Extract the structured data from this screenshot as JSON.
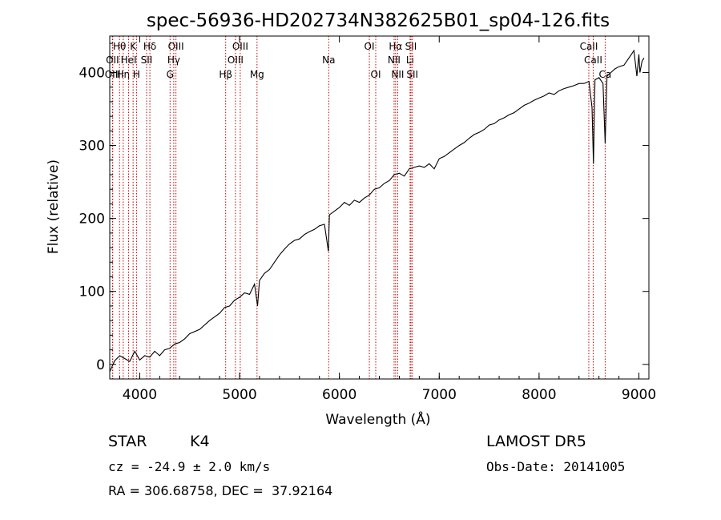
{
  "chart_data": {
    "type": "line",
    "title": "spec-56936-HD202734N382625B01_sp04-126.fits",
    "xlabel": "Wavelength (Å)",
    "ylabel": "Flux (relative)",
    "xlim": [
      3700,
      9100
    ],
    "ylim": [
      -20,
      450
    ],
    "x_ticks": [
      4000,
      5000,
      6000,
      7000,
      8000,
      9000
    ],
    "y_ticks": [
      0,
      100,
      200,
      300,
      400
    ],
    "grid": false,
    "line_color": "#000000",
    "marker_color": "#c00000",
    "series": [
      {
        "x": [
          3700,
          3750,
          3800,
          3850,
          3900,
          3950,
          4000,
          4050,
          4100,
          4150,
          4200,
          4250,
          4300,
          4350,
          4400,
          4450,
          4500,
          4600,
          4700,
          4800,
          4850,
          4900,
          4950,
          5000,
          5050,
          5100,
          5150,
          5180,
          5200,
          5250,
          5300,
          5350,
          5400,
          5450,
          5500,
          5550,
          5600,
          5650,
          5700,
          5750,
          5800,
          5850,
          5890,
          5900,
          5950,
          6000,
          6050,
          6100,
          6150,
          6200,
          6250,
          6300,
          6350,
          6400,
          6450,
          6500,
          6550,
          6600,
          6650,
          6700,
          6750,
          6800,
          6850,
          6900,
          6950,
          7000,
          7050,
          7100,
          7150,
          7200,
          7250,
          7300,
          7350,
          7400,
          7450,
          7500,
          7550,
          7600,
          7650,
          7700,
          7750,
          7800,
          7850,
          7900,
          7950,
          8000,
          8050,
          8100,
          8150,
          8200,
          8250,
          8300,
          8350,
          8400,
          8450,
          8500,
          8530,
          8545,
          8560,
          8600,
          8640,
          8662,
          8680,
          8720,
          8760,
          8800,
          8850,
          8900,
          8950,
          8980,
          9000,
          9010,
          9030,
          9050
        ],
        "y": [
          -10,
          5,
          12,
          8,
          4,
          18,
          6,
          12,
          10,
          18,
          12,
          20,
          22,
          28,
          30,
          35,
          42,
          48,
          60,
          70,
          78,
          80,
          88,
          92,
          98,
          96,
          110,
          80,
          115,
          125,
          130,
          140,
          150,
          158,
          165,
          170,
          172,
          178,
          182,
          185,
          190,
          192,
          155,
          205,
          210,
          215,
          222,
          218,
          225,
          222,
          228,
          232,
          240,
          242,
          248,
          252,
          260,
          262,
          258,
          268,
          270,
          272,
          270,
          275,
          268,
          282,
          285,
          290,
          295,
          300,
          304,
          310,
          315,
          318,
          322,
          328,
          330,
          335,
          338,
          342,
          345,
          350,
          355,
          358,
          362,
          365,
          368,
          372,
          370,
          375,
          378,
          380,
          382,
          385,
          385,
          388,
          352,
          275,
          390,
          393,
          385,
          303,
          395,
          400,
          405,
          408,
          410,
          420,
          430,
          395,
          425,
          400,
          415,
          420
        ]
      }
    ],
    "line_markers": [
      {
        "name": "Hθ",
        "x": 3798,
        "row": 1
      },
      {
        "name": "OII",
        "x": 3727,
        "row": 2
      },
      {
        "name": "OIII",
        "x": 3730,
        "row": 3
      },
      {
        "name": "Hη",
        "x": 3835,
        "row": 3
      },
      {
        "name": "K",
        "x": 3934,
        "row": 1
      },
      {
        "name": "HeI",
        "x": 3889,
        "row": 2
      },
      {
        "name": "H",
        "x": 3968,
        "row": 3
      },
      {
        "name": "Hδ",
        "x": 4102,
        "row": 1
      },
      {
        "name": "SII",
        "x": 4069,
        "row": 2
      },
      {
        "name": "OIII",
        "x": 4363,
        "row": 1
      },
      {
        "name": "Hγ",
        "x": 4341,
        "row": 2
      },
      {
        "name": "G",
        "x": 4304,
        "row": 3
      },
      {
        "name": "OIII",
        "x": 5007,
        "row": 1
      },
      {
        "name": "OIII",
        "x": 4959,
        "row": 2
      },
      {
        "name": "Hβ",
        "x": 4861,
        "row": 3
      },
      {
        "name": "Mg",
        "x": 5175,
        "row": 3
      },
      {
        "name": "Na",
        "x": 5893,
        "row": 2
      },
      {
        "name": "OI",
        "x": 6300,
        "row": 1
      },
      {
        "name": "OI",
        "x": 6364,
        "row": 3
      },
      {
        "name": "Hα",
        "x": 6563,
        "row": 1
      },
      {
        "name": "NII",
        "x": 6548,
        "row": 2
      },
      {
        "name": "NII",
        "x": 6584,
        "row": 3
      },
      {
        "name": "SII",
        "x": 6717,
        "row": 1
      },
      {
        "name": "Li",
        "x": 6708,
        "row": 2
      },
      {
        "name": "SII",
        "x": 6731,
        "row": 3
      },
      {
        "name": "CaII",
        "x": 8498,
        "row": 1
      },
      {
        "name": "CaII",
        "x": 8542,
        "row": 2
      },
      {
        "name": "Ca",
        "x": 8662,
        "row": 3
      }
    ]
  },
  "info": {
    "object_class": "STAR",
    "subclass": "K4",
    "survey": "LAMOST DR5",
    "velocity": "cz = -24.9 ± 2.0 km/s",
    "obs_date": "Obs-Date: 20141005",
    "coords": "RA = 306.68758, DEC =  37.92164"
  }
}
